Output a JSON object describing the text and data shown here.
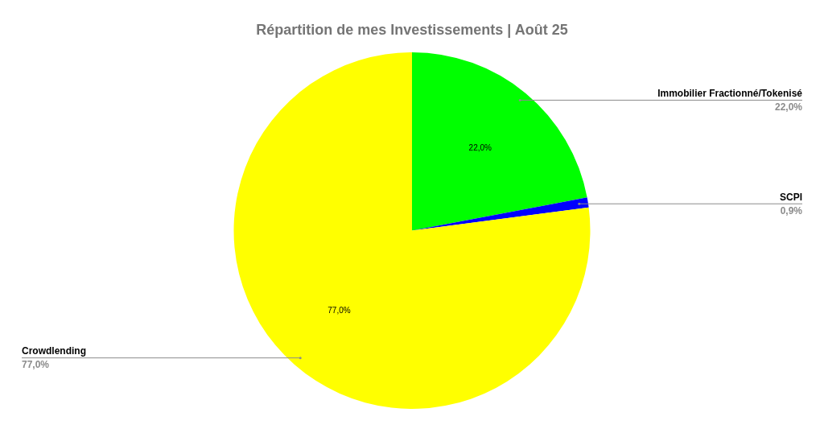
{
  "chart_data": {
    "type": "pie",
    "title": "Répartition de mes Investissements | Août 25",
    "categories": [
      "Immobilier Fractionné/Tokenisé",
      "SCPI",
      "Crowdlending"
    ],
    "values": [
      22.0,
      0.9,
      77.0
    ],
    "colors": [
      "#00ff00",
      "#0000ff",
      "#ffff00"
    ],
    "value_labels": [
      "22,0%",
      "0,9%",
      "77,0%"
    ],
    "legend": false
  }
}
